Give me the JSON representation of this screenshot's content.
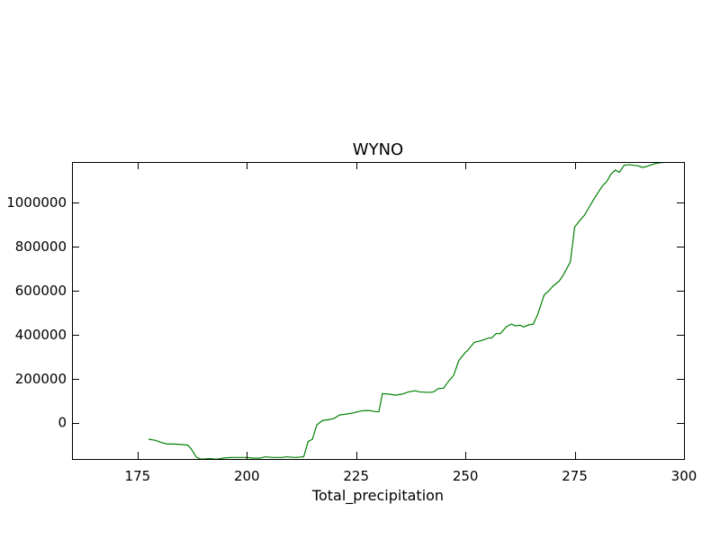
{
  "chart_data": {
    "type": "line",
    "title": "WYNO",
    "xlabel": "Total_precipitation",
    "ylabel": "",
    "xlim": [
      160,
      300
    ],
    "ylim": [
      -165000,
      1185000
    ],
    "x_ticks": [
      175,
      200,
      225,
      250,
      275,
      300
    ],
    "x_tick_labels": [
      "175",
      "200",
      "225",
      "250",
      "275",
      "300"
    ],
    "y_ticks": [
      0,
      200000,
      400000,
      600000,
      800000,
      1000000
    ],
    "y_tick_labels": [
      "0",
      "200000",
      "400000",
      "600000",
      "800000",
      "1000000"
    ],
    "grid": false,
    "legend": "none",
    "series": [
      {
        "color": "#008000",
        "x": [
          177.5,
          179.0,
          180.5,
          181.8,
          183.2,
          185.0,
          186.5,
          187.3,
          188.5,
          189.5,
          191.5,
          193.0,
          195.0,
          196.5,
          198.5,
          200.0,
          201.5,
          203.0,
          204.2,
          206.0,
          208.0,
          209.0,
          211.0,
          213.0,
          214.0,
          215.0,
          216.0,
          217.3,
          219.0,
          220.0,
          221.2,
          223.0,
          224.5,
          226.0,
          227.0,
          228.2,
          229.5,
          230.2,
          231.0,
          232.5,
          234.0,
          235.5,
          237.0,
          238.5,
          239.5,
          241.0,
          242.0,
          242.7,
          243.8,
          245.0,
          246.0,
          247.3,
          248.5,
          250.0,
          250.5,
          252.0,
          253.5,
          255.3,
          256.0,
          257.0,
          258.0,
          259.3,
          260.5,
          261.5,
          262.5,
          263.3,
          264.5,
          265.5,
          266.5,
          268.0,
          269.0,
          270.0,
          271.5,
          272.5,
          273.3,
          274.0,
          275.0,
          276.0,
          277.3,
          278.3,
          279.5,
          280.8,
          281.5,
          282.3,
          283.3,
          284.3,
          285.2,
          286.3,
          287.5,
          288.5,
          289.5,
          290.5,
          291.5,
          292.5,
          293.5,
          294.5,
          295.5,
          296.7
        ],
        "y": [
          -75000,
          -80000,
          -90000,
          -97000,
          -97000,
          -99000,
          -102000,
          -120000,
          -158000,
          -166000,
          -163000,
          -166000,
          -160000,
          -158000,
          -158000,
          -158000,
          -161000,
          -161000,
          -155000,
          -158000,
          -158000,
          -155000,
          -158000,
          -155000,
          -86000,
          -75000,
          -10000,
          10000,
          15000,
          20000,
          35000,
          40000,
          45000,
          53000,
          55000,
          55000,
          50000,
          50000,
          132000,
          130000,
          125000,
          130000,
          140000,
          145000,
          140000,
          138000,
          138000,
          140000,
          155000,
          157000,
          185000,
          215000,
          283000,
          320000,
          328000,
          365000,
          372000,
          385000,
          385000,
          405000,
          405000,
          435000,
          448000,
          440000,
          443000,
          435000,
          445000,
          448000,
          490000,
          580000,
          598000,
          620000,
          645000,
          675000,
          705000,
          730000,
          890000,
          915000,
          945000,
          980000,
          1020000,
          1060000,
          1080000,
          1095000,
          1130000,
          1148000,
          1138000,
          1170000,
          1173000,
          1170000,
          1168000,
          1160000,
          1165000,
          1172000,
          1178000,
          1182000,
          1183000,
          1185000
        ]
      }
    ]
  }
}
